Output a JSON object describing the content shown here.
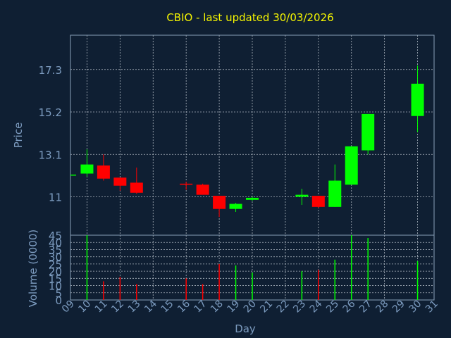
{
  "chart_data": {
    "type": "candlestick",
    "title": "CBIO - last updated 30/03/2026",
    "xlabel": "Day",
    "x": [
      "09",
      "10",
      "11",
      "12",
      "13",
      "14",
      "15",
      "16",
      "17",
      "18",
      "19",
      "20",
      "21",
      "22",
      "23",
      "24",
      "25",
      "26",
      "27",
      "28",
      "29",
      "30",
      "31"
    ],
    "price_panel": {
      "ylabel": "Price",
      "yticks": [
        11,
        13.1,
        15.2,
        17.3
      ],
      "ytick_labels": [
        "11",
        "13.1",
        "15.2",
        "17.3"
      ],
      "ylim": [
        9.1,
        19.0
      ],
      "candles": [
        {
          "day": "09",
          "open": 12.1,
          "close": 12.1,
          "high": 12.1,
          "low": 12.1
        },
        {
          "day": "10",
          "open": 12.15,
          "close": 12.6,
          "high": 13.35,
          "low": 12.0
        },
        {
          "day": "11",
          "open": 12.55,
          "close": 11.9,
          "high": 13.1,
          "low": 11.8
        },
        {
          "day": "12",
          "open": 11.95,
          "close": 11.55,
          "high": 11.95,
          "low": 11.3
        },
        {
          "day": "13",
          "open": 11.7,
          "close": 11.2,
          "high": 12.45,
          "low": 11.15
        },
        {
          "day": "16",
          "open": 11.65,
          "close": 11.6,
          "high": 11.75,
          "low": 11.35
        },
        {
          "day": "17",
          "open": 11.6,
          "close": 11.1,
          "high": 11.65,
          "low": 11.1
        },
        {
          "day": "18",
          "open": 11.05,
          "close": 10.4,
          "high": 11.05,
          "low": 10.0
        },
        {
          "day": "19",
          "open": 10.4,
          "close": 10.65,
          "high": 10.7,
          "low": 10.25
        },
        {
          "day": "20",
          "open": 10.85,
          "close": 10.95,
          "high": 11.0,
          "low": 10.8
        },
        {
          "day": "23",
          "open": 11.0,
          "close": 11.1,
          "high": 11.4,
          "low": 10.6
        },
        {
          "day": "24",
          "open": 11.05,
          "close": 10.5,
          "high": 11.05,
          "low": 10.45
        },
        {
          "day": "25",
          "open": 10.5,
          "close": 11.8,
          "high": 12.6,
          "low": 10.5
        },
        {
          "day": "26",
          "open": 11.6,
          "close": 13.5,
          "high": 13.5,
          "low": 11.6
        },
        {
          "day": "27",
          "open": 13.3,
          "close": 15.1,
          "high": 15.1,
          "low": 13.1
        },
        {
          "day": "30",
          "open": 15.0,
          "close": 16.6,
          "high": 17.5,
          "low": 14.2
        }
      ]
    },
    "volume_panel": {
      "ylabel": "Volume (0000)",
      "yticks": [
        0,
        5,
        10,
        15,
        20,
        25,
        30,
        35,
        40,
        45
      ],
      "ylim": [
        0,
        45
      ],
      "bars": [
        {
          "day": "10",
          "value": 45,
          "direction": "up"
        },
        {
          "day": "11",
          "value": 13,
          "direction": "down"
        },
        {
          "day": "12",
          "value": 16,
          "direction": "down"
        },
        {
          "day": "13",
          "value": 11,
          "direction": "down"
        },
        {
          "day": "16",
          "value": 15,
          "direction": "down"
        },
        {
          "day": "17",
          "value": 11,
          "direction": "down"
        },
        {
          "day": "18",
          "value": 25,
          "direction": "down"
        },
        {
          "day": "19",
          "value": 24,
          "direction": "up"
        },
        {
          "day": "20",
          "value": 19,
          "direction": "up"
        },
        {
          "day": "23",
          "value": 20,
          "direction": "up"
        },
        {
          "day": "24",
          "value": 21,
          "direction": "down"
        },
        {
          "day": "25",
          "value": 28,
          "direction": "up"
        },
        {
          "day": "26",
          "value": 45,
          "direction": "up"
        },
        {
          "day": "27",
          "value": 43,
          "direction": "up"
        },
        {
          "day": "30",
          "value": 27,
          "direction": "up"
        }
      ]
    },
    "colors": {
      "background": "#0f1f33",
      "up": "#00ff00",
      "down": "#ff0000",
      "title": "#f5f500",
      "text": "#7d9cc0",
      "grid": "#c8d0d8",
      "axis": "#8aa0b8"
    },
    "grid": true
  }
}
